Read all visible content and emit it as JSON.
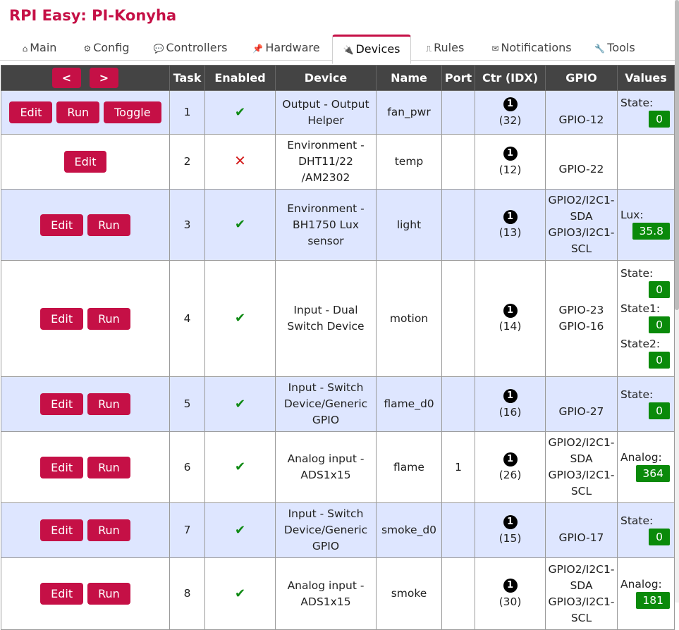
{
  "app": {
    "title": "RPI Easy: PI-Konyha"
  },
  "tabs": [
    {
      "label": "Main",
      "icon": "⌂"
    },
    {
      "label": "Config",
      "icon": "⚙"
    },
    {
      "label": "Controllers",
      "icon": "💬"
    },
    {
      "label": "Hardware",
      "icon": "📌"
    },
    {
      "label": "Devices",
      "icon": "🔌",
      "active": true
    },
    {
      "label": "Rules",
      "icon": "⎍"
    },
    {
      "label": "Notifications",
      "icon": "✉"
    },
    {
      "label": "Tools",
      "icon": "🔧"
    }
  ],
  "table": {
    "nav": {
      "prev": "<",
      "next": ">"
    },
    "headers": {
      "task": "Task",
      "enabled": "Enabled",
      "device": "Device",
      "name": "Name",
      "port": "Port",
      "ctr": "Ctr (IDX)",
      "gpio": "GPIO",
      "values": "Values"
    },
    "buttons": {
      "edit": "Edit",
      "run": "Run",
      "toggle": "Toggle"
    },
    "ctr_badge": "1",
    "rows": [
      {
        "task": "1",
        "enabled": "✔",
        "device": [
          "Output - Output",
          "Helper"
        ],
        "name": "fan_pwr",
        "port": "",
        "idx": "(32)",
        "gpio": [
          "GPIO-12"
        ],
        "values": [
          {
            "name": "State:",
            "value": "0"
          }
        ]
      },
      {
        "task": "2",
        "enabled": "✕",
        "device": [
          "Environment -",
          "DHT11/22",
          "/AM2302"
        ],
        "name": "temp",
        "port": "",
        "idx": "(12)",
        "gpio": [
          "GPIO-22"
        ],
        "values": []
      },
      {
        "task": "3",
        "enabled": "✔",
        "device": [
          "Environment -",
          "BH1750 Lux",
          "sensor"
        ],
        "name": "light",
        "port": "",
        "idx": "(13)",
        "gpio": [
          "GPIO2/I2C1-",
          "SDA",
          "GPIO3/I2C1-",
          "SCL"
        ],
        "values": [
          {
            "name": "Lux:",
            "value": "35.8"
          }
        ]
      },
      {
        "task": "4",
        "enabled": "✔",
        "device": [
          "Input - Dual",
          "Switch Device"
        ],
        "name": "motion",
        "port": "",
        "idx": "(14)",
        "gpio": [
          "GPIO-23",
          "GPIO-16"
        ],
        "values": [
          {
            "name": "State:",
            "value": "0"
          },
          {
            "name": "State1:",
            "value": "0"
          },
          {
            "name": "State2:",
            "value": "0"
          }
        ]
      },
      {
        "task": "5",
        "enabled": "✔",
        "device": [
          "Input - Switch",
          "Device/Generic",
          "GPIO"
        ],
        "name": "flame_d0",
        "port": "",
        "idx": "(16)",
        "gpio": [
          "GPIO-27"
        ],
        "values": [
          {
            "name": "State:",
            "value": "0"
          }
        ]
      },
      {
        "task": "6",
        "enabled": "✔",
        "device": [
          "Analog input -",
          "ADS1x15"
        ],
        "name": "flame",
        "port": "1",
        "idx": "(26)",
        "gpio": [
          "GPIO2/I2C1-",
          "SDA",
          "GPIO3/I2C1-",
          "SCL"
        ],
        "values": [
          {
            "name": "Analog:",
            "value": "364"
          }
        ]
      },
      {
        "task": "7",
        "enabled": "✔",
        "device": [
          "Input - Switch",
          "Device/Generic",
          "GPIO"
        ],
        "name": "smoke_d0",
        "port": "",
        "idx": "(15)",
        "gpio": [
          "GPIO-17"
        ],
        "values": [
          {
            "name": "State:",
            "value": "0"
          }
        ]
      },
      {
        "task": "8",
        "enabled": "✔",
        "device": [
          "Analog input -",
          "ADS1x15"
        ],
        "name": "smoke",
        "port": "",
        "idx": "(30)",
        "gpio": [
          "GPIO2/I2C1-",
          "SDA",
          "GPIO3/I2C1-",
          "SCL"
        ],
        "values": [
          {
            "name": "Analog:",
            "value": "181"
          }
        ]
      }
    ]
  },
  "colors": {
    "accent": "#c51046",
    "header_bg": "#444444",
    "row_alt": "#dee6ff",
    "value_badge": "#0a8a0a",
    "check": "#0f8a14",
    "cross": "#d42020"
  }
}
